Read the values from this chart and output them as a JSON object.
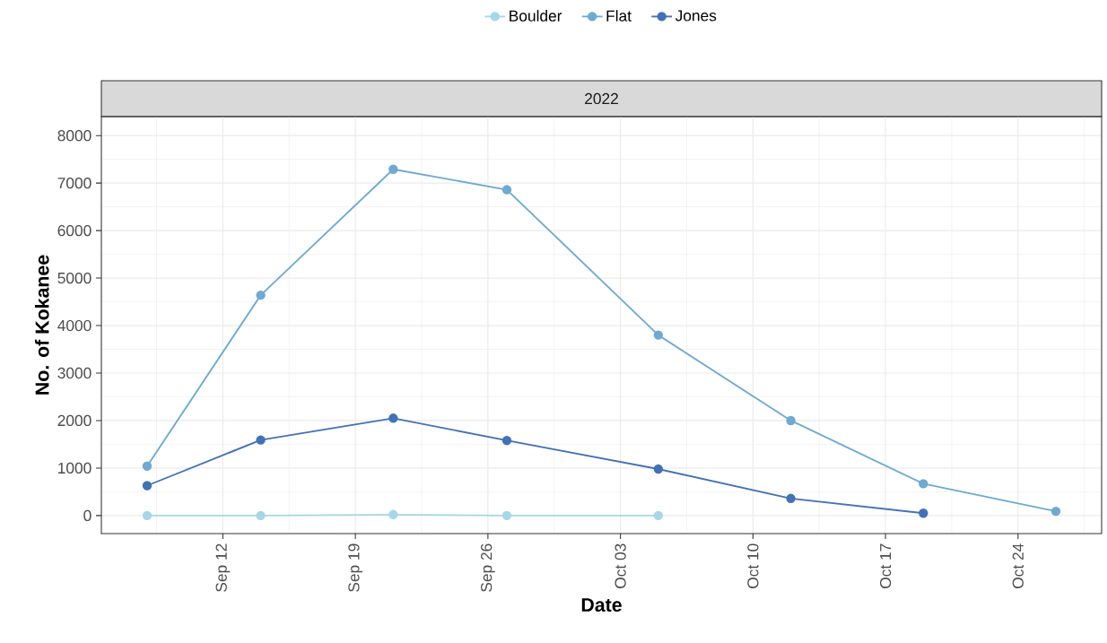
{
  "chart_data": {
    "type": "line",
    "title": "2022",
    "xlabel": "Date",
    "ylabel": "No. of Kokanee",
    "series": [
      {
        "name": "Boulder",
        "color": "#a6d7e8",
        "x": [
          "2022-09-08",
          "2022-09-14",
          "2022-09-21",
          "2022-09-27",
          "2022-10-05"
        ],
        "values": [
          0,
          0,
          20,
          0,
          0
        ]
      },
      {
        "name": "Flat",
        "color": "#6eaad2",
        "x": [
          "2022-09-08",
          "2022-09-14",
          "2022-09-21",
          "2022-09-27",
          "2022-10-05",
          "2022-10-12",
          "2022-10-19",
          "2022-10-26"
        ],
        "values": [
          1040,
          4640,
          7290,
          6860,
          3800,
          2000,
          670,
          90
        ]
      },
      {
        "name": "Jones",
        "color": "#4272b6",
        "x": [
          "2022-09-08",
          "2022-09-14",
          "2022-09-21",
          "2022-09-27",
          "2022-10-05",
          "2022-10-12",
          "2022-10-19"
        ],
        "values": [
          630,
          1590,
          2050,
          1580,
          980,
          360,
          50
        ]
      }
    ],
    "xlim": [
      "2022-09-05T14:00",
      "2022-10-28T10:00"
    ],
    "xticks": [
      {
        "value": "2022-09-12",
        "label": "Sep 12"
      },
      {
        "value": "2022-09-19",
        "label": "Sep 19"
      },
      {
        "value": "2022-09-26",
        "label": "Sep 26"
      },
      {
        "value": "2022-10-03",
        "label": "Oct 03"
      },
      {
        "value": "2022-10-10",
        "label": "Oct 10"
      },
      {
        "value": "2022-10-17",
        "label": "Oct 17"
      },
      {
        "value": "2022-10-24",
        "label": "Oct 24"
      }
    ],
    "ylim": [
      -380,
      8400
    ],
    "yticks": [
      0,
      1000,
      2000,
      3000,
      4000,
      5000,
      6000,
      7000,
      8000
    ],
    "grid": true,
    "legend": "top",
    "marker": "circle",
    "line_style": "solid"
  }
}
